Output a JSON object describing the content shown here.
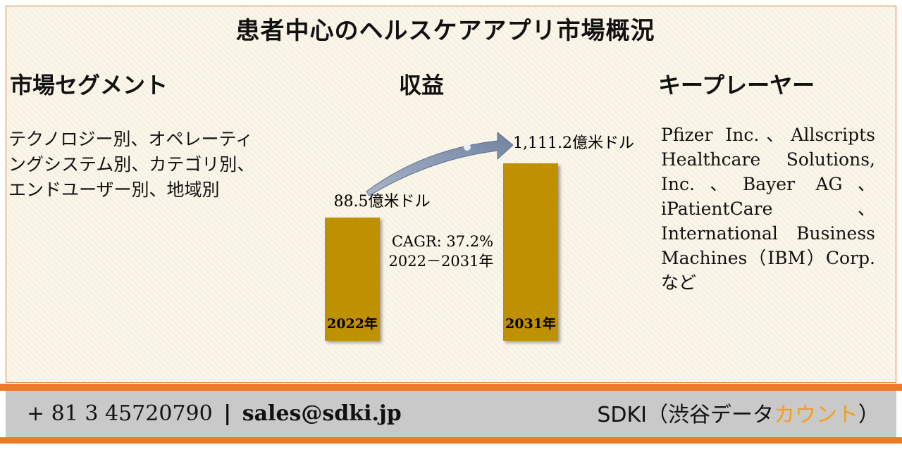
{
  "title": "患者中心のヘルスケアアプリ市場概況",
  "headings": {
    "segments": "市場セグメント",
    "revenue": "収益",
    "players": "キープレーヤー"
  },
  "segments_text": "テクノロジー別、オペレーティングシステム別、カテゴリ別、エンドユーザー別、地域別",
  "players_text": "Pfizer Inc.、Allscripts Healthcare Solutions, Inc.、Bayer AG、iPatientCare、International Business Machines（IBM）Corp. など",
  "chart_data": {
    "type": "bar",
    "categories": [
      "2022年",
      "2031年"
    ],
    "values": [
      88.5,
      1111.2
    ],
    "value_labels": [
      "88.5億米ドル",
      "1,111.2億米ドル"
    ],
    "cagr_label": "CAGR: 37.2%",
    "period_label": "2022－2031年",
    "bar_color": "#bf9000",
    "arrow_color": "#8497b0"
  },
  "footer": {
    "phone": "+ 81 3 45720790",
    "separator": "|",
    "email": "sales@sdki.jp",
    "brand_prefix": "SDKI（渋谷データ",
    "brand_accent": "カウント",
    "brand_suffix": "）"
  },
  "colors": {
    "accent_orange": "#ec7a28",
    "footer_gray": "#c9c9c9",
    "brand_accent": "#f0a01e"
  }
}
